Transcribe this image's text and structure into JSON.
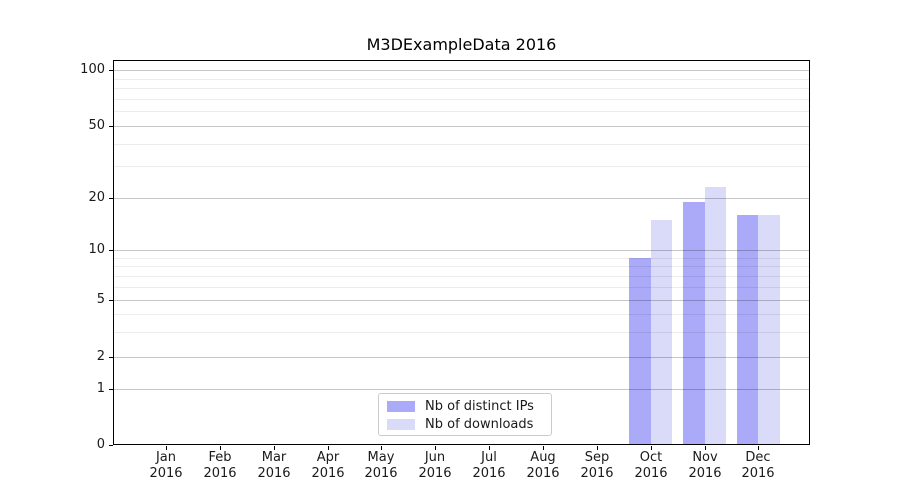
{
  "figure": {
    "background": "#ffffff"
  },
  "chart_data": {
    "type": "bar",
    "title": "M3DExampleData 2016",
    "categories": [
      "Jan",
      "Feb",
      "Mar",
      "Apr",
      "May",
      "Jun",
      "Jul",
      "Aug",
      "Sep",
      "Oct",
      "Nov",
      "Dec"
    ],
    "x_tick_second_line": "2016",
    "series": [
      {
        "name": "Nb of distinct IPs",
        "color": "#aaaaf8",
        "values": [
          0,
          0,
          0,
          0,
          0,
          0,
          0,
          0,
          0,
          9,
          19,
          16
        ]
      },
      {
        "name": "Nb of downloads",
        "color": "#dadaf9",
        "values": [
          0,
          0,
          0,
          0,
          0,
          0,
          0,
          0,
          0,
          15,
          23,
          16
        ]
      }
    ],
    "y_axis": {
      "scale": "symlog",
      "major_ticks": [
        0,
        1,
        2,
        5,
        10,
        20,
        50,
        100
      ],
      "minor_ticks": [
        3,
        4,
        6,
        7,
        8,
        9,
        30,
        40,
        60,
        70,
        80,
        90
      ],
      "ylim": [
        0,
        113
      ]
    },
    "grid": "both",
    "legend_position": "lower center",
    "colors": {
      "major_grid": "#c8c8c8",
      "minor_grid": "#ededed",
      "axis": "#000000",
      "text": "#1a1a1a"
    }
  }
}
